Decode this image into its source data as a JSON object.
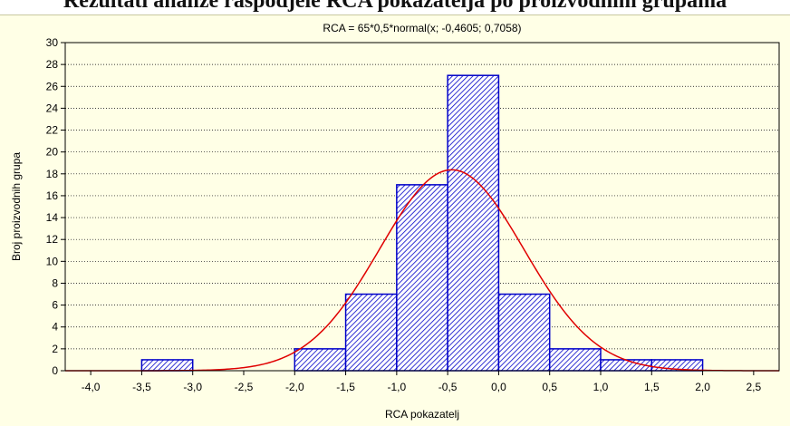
{
  "page": {
    "banner_text": "Rezultati analize raspodjele RCA pokazatelja po proizvodnim grupama"
  },
  "colors": {
    "background": "#ffffe6",
    "bar_stroke": "#0000c8",
    "bar_hatch": "#0000c8",
    "curve": "#e00000",
    "grid": "#000000"
  },
  "chart_data": {
    "type": "bar",
    "title": "RCA = 65*0,5*normal(x; -0,4605; 0,7058)",
    "xlabel": "RCA pokazatelj",
    "ylabel": "Broj proizvodnih grupa",
    "xlim": [
      -4.25,
      2.75
    ],
    "ylim": [
      0,
      30
    ],
    "x_ticks": [
      "-4,0",
      "-3,5",
      "-3,0",
      "-2,5",
      "-2,0",
      "-1,5",
      "-1,0",
      "-0,5",
      "0,0",
      "0,5",
      "1,0",
      "1,5",
      "2,0",
      "2,5"
    ],
    "x_tick_values": [
      -4.0,
      -3.5,
      -3.0,
      -2.5,
      -2.0,
      -1.5,
      -1.0,
      -0.5,
      0.0,
      0.5,
      1.0,
      1.5,
      2.0,
      2.5
    ],
    "y_ticks": [
      0,
      2,
      4,
      6,
      8,
      10,
      12,
      14,
      16,
      18,
      20,
      22,
      24,
      26,
      28,
      30
    ],
    "grid": true,
    "bins": [
      {
        "from": -3.5,
        "to": -3.0,
        "count": 1
      },
      {
        "from": -2.0,
        "to": -1.5,
        "count": 2
      },
      {
        "from": -1.5,
        "to": -1.0,
        "count": 7
      },
      {
        "from": -1.0,
        "to": -0.5,
        "count": 17
      },
      {
        "from": -0.5,
        "to": 0.0,
        "count": 27
      },
      {
        "from": 0.0,
        "to": 0.5,
        "count": 7
      },
      {
        "from": 0.5,
        "to": 1.0,
        "count": 2
      },
      {
        "from": 1.0,
        "to": 1.5,
        "count": 1
      },
      {
        "from": 1.5,
        "to": 2.0,
        "count": 1
      }
    ],
    "fit": {
      "n": 65,
      "bin_width": 0.5,
      "mean": -0.4605,
      "sd": 0.7058
    }
  }
}
